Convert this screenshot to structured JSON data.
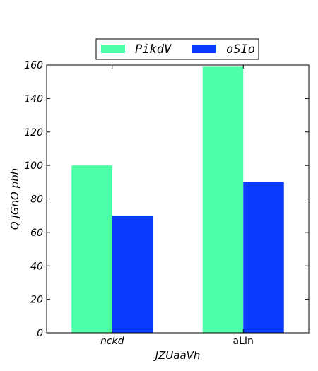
{
  "chart_data": {
    "type": "bar",
    "categories": [
      "nckd",
      "aLIn"
    ],
    "category_label_italic": [
      true,
      false
    ],
    "series": [
      {
        "name": "PikdV",
        "values": [
          100,
          159
        ],
        "color": "#4dffa6"
      },
      {
        "name": "oSIo",
        "values": [
          70,
          90
        ],
        "color": "#0a3cff"
      }
    ],
    "xlabel": "JZUaaVh",
    "ylabel": "Q JGnO pbh",
    "ylim": [
      0,
      160
    ],
    "yticks": [
      0,
      20,
      40,
      60,
      80,
      100,
      120,
      140,
      160
    ],
    "grid": false,
    "legend_position": "top-center"
  }
}
